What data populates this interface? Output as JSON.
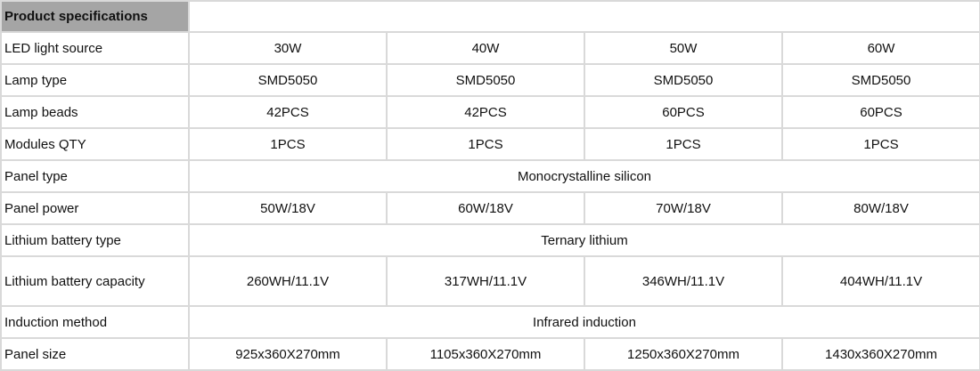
{
  "header": {
    "title": "Product specifications",
    "fill_color": "#a5a5a5"
  },
  "rows": [
    {
      "label": "LED light source",
      "values": [
        "30W",
        "40W",
        "50W",
        "60W"
      ]
    },
    {
      "label": "Lamp type",
      "values": [
        "SMD5050",
        "SMD5050",
        "SMD5050",
        "SMD5050"
      ]
    },
    {
      "label": "Lamp beads",
      "values": [
        "42PCS",
        "42PCS",
        "60PCS",
        "60PCS"
      ]
    },
    {
      "label": "Modules QTY",
      "values": [
        "1PCS",
        "1PCS",
        "1PCS",
        "1PCS"
      ]
    },
    {
      "label": "Panel type",
      "values": [
        "Monocrystalline silicon"
      ]
    },
    {
      "label": "Panel power",
      "values": [
        "50W/18V",
        "60W/18V",
        "70W/18V",
        "80W/18V"
      ]
    },
    {
      "label": "Lithium battery type",
      "values": [
        "Ternary lithium"
      ]
    },
    {
      "label": "Lithium battery capacity",
      "values": [
        "260WH/11.1V",
        "317WH/11.1V",
        "346WH/11.1V",
        "404WH/11.1V"
      ]
    },
    {
      "label": "Induction method",
      "values": [
        "Infrared induction"
      ]
    },
    {
      "label": "Panel size",
      "values": [
        "925x360X270mm",
        "1105x360X270mm",
        "1250x360X270mm",
        "1430x360X270mm"
      ]
    }
  ]
}
